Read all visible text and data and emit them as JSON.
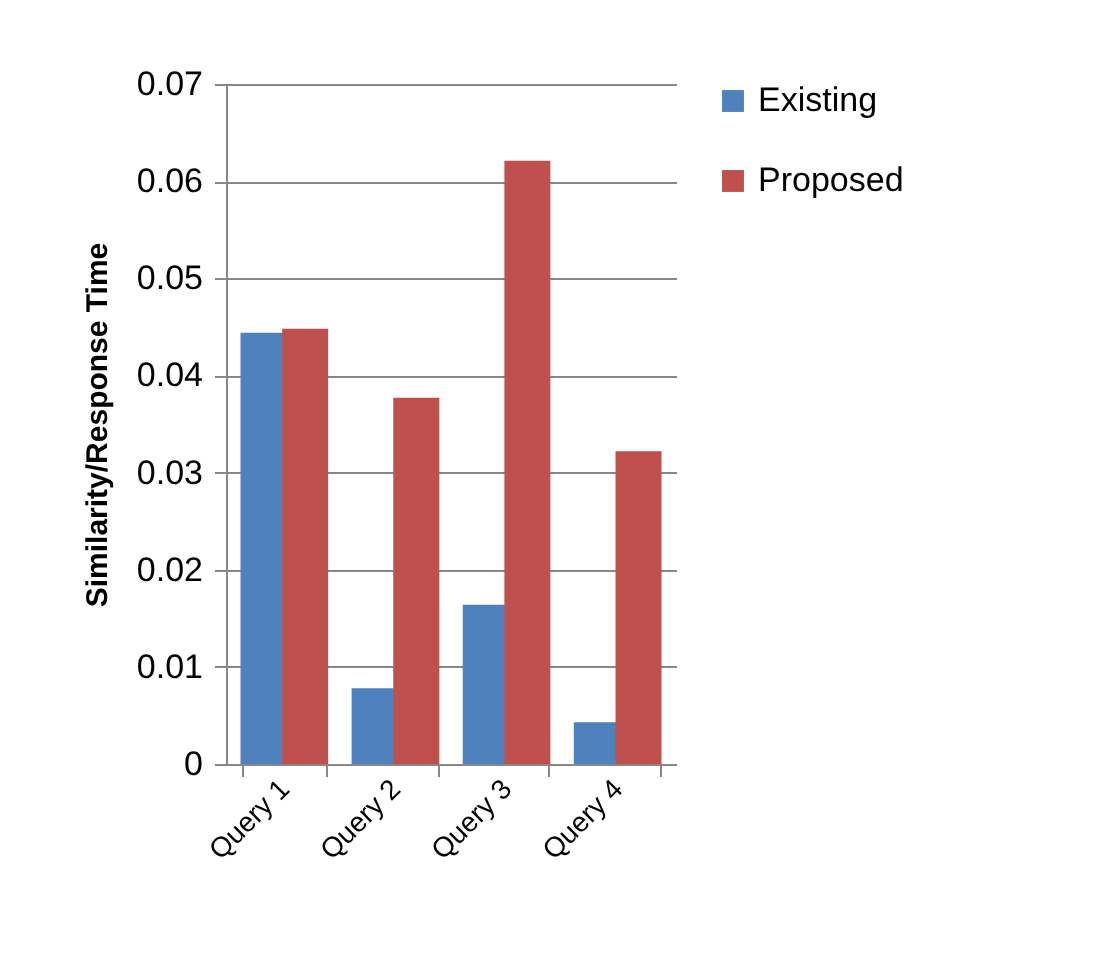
{
  "chart_data": {
    "type": "bar",
    "ylabel": "Similarity/Response Time",
    "categories": [
      "Query 1",
      "Query 2",
      "Query 3",
      "Query 4"
    ],
    "series": [
      {
        "name": "Existing",
        "color": "#4f81bd",
        "values": [
          0.0444,
          0.0078,
          0.0164,
          0.0043
        ]
      },
      {
        "name": "Proposed",
        "color": "#c0504d",
        "values": [
          0.0448,
          0.0377,
          0.0621,
          0.0322
        ]
      }
    ],
    "ylim": [
      0,
      0.07
    ],
    "yticks": [
      0,
      0.01,
      0.02,
      0.03,
      0.04,
      0.05,
      0.06,
      0.07
    ],
    "grid": "y",
    "legend": "right"
  }
}
